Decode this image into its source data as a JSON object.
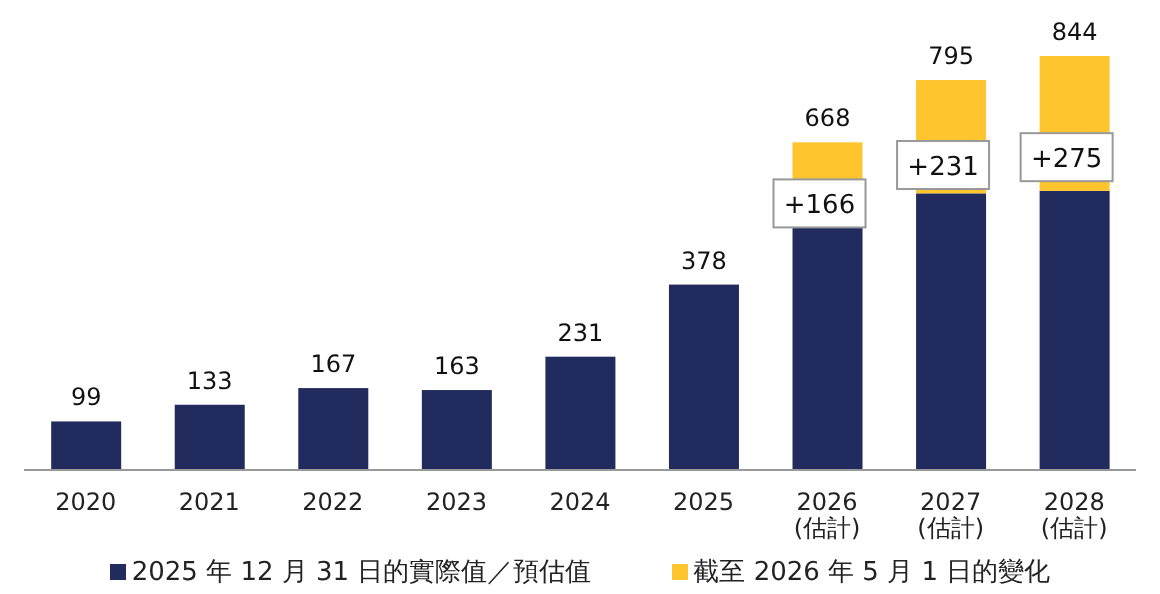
{
  "chart_data": {
    "type": "bar",
    "stacked": true,
    "categories": [
      "2020",
      "2021",
      "2022",
      "2023",
      "2024",
      "2025",
      "2026\n(估計)",
      "2027\n(估計)",
      "2028\n(估計)"
    ],
    "series": [
      {
        "name": "2025 年 12 月 31 日的實際值／預估值",
        "color": "#212b5e",
        "values": [
          99,
          133,
          167,
          163,
          231,
          378,
          502,
          564,
          569
        ],
        "value_labels": [
          "99",
          "133",
          "167",
          "163",
          "231",
          "378",
          null,
          null,
          null
        ]
      },
      {
        "name": "截至 2026 年 5 月 1 日的變化",
        "color": "#fec52e",
        "values": [
          null,
          null,
          null,
          null,
          null,
          null,
          166,
          231,
          275
        ],
        "value_labels": [
          null,
          null,
          null,
          null,
          null,
          null,
          "+166",
          "+231",
          "+275"
        ]
      }
    ],
    "totals": [
      null,
      null,
      null,
      null,
      null,
      null,
      "668",
      "795",
      "844"
    ],
    "legend": "bottom",
    "grid": false
  }
}
